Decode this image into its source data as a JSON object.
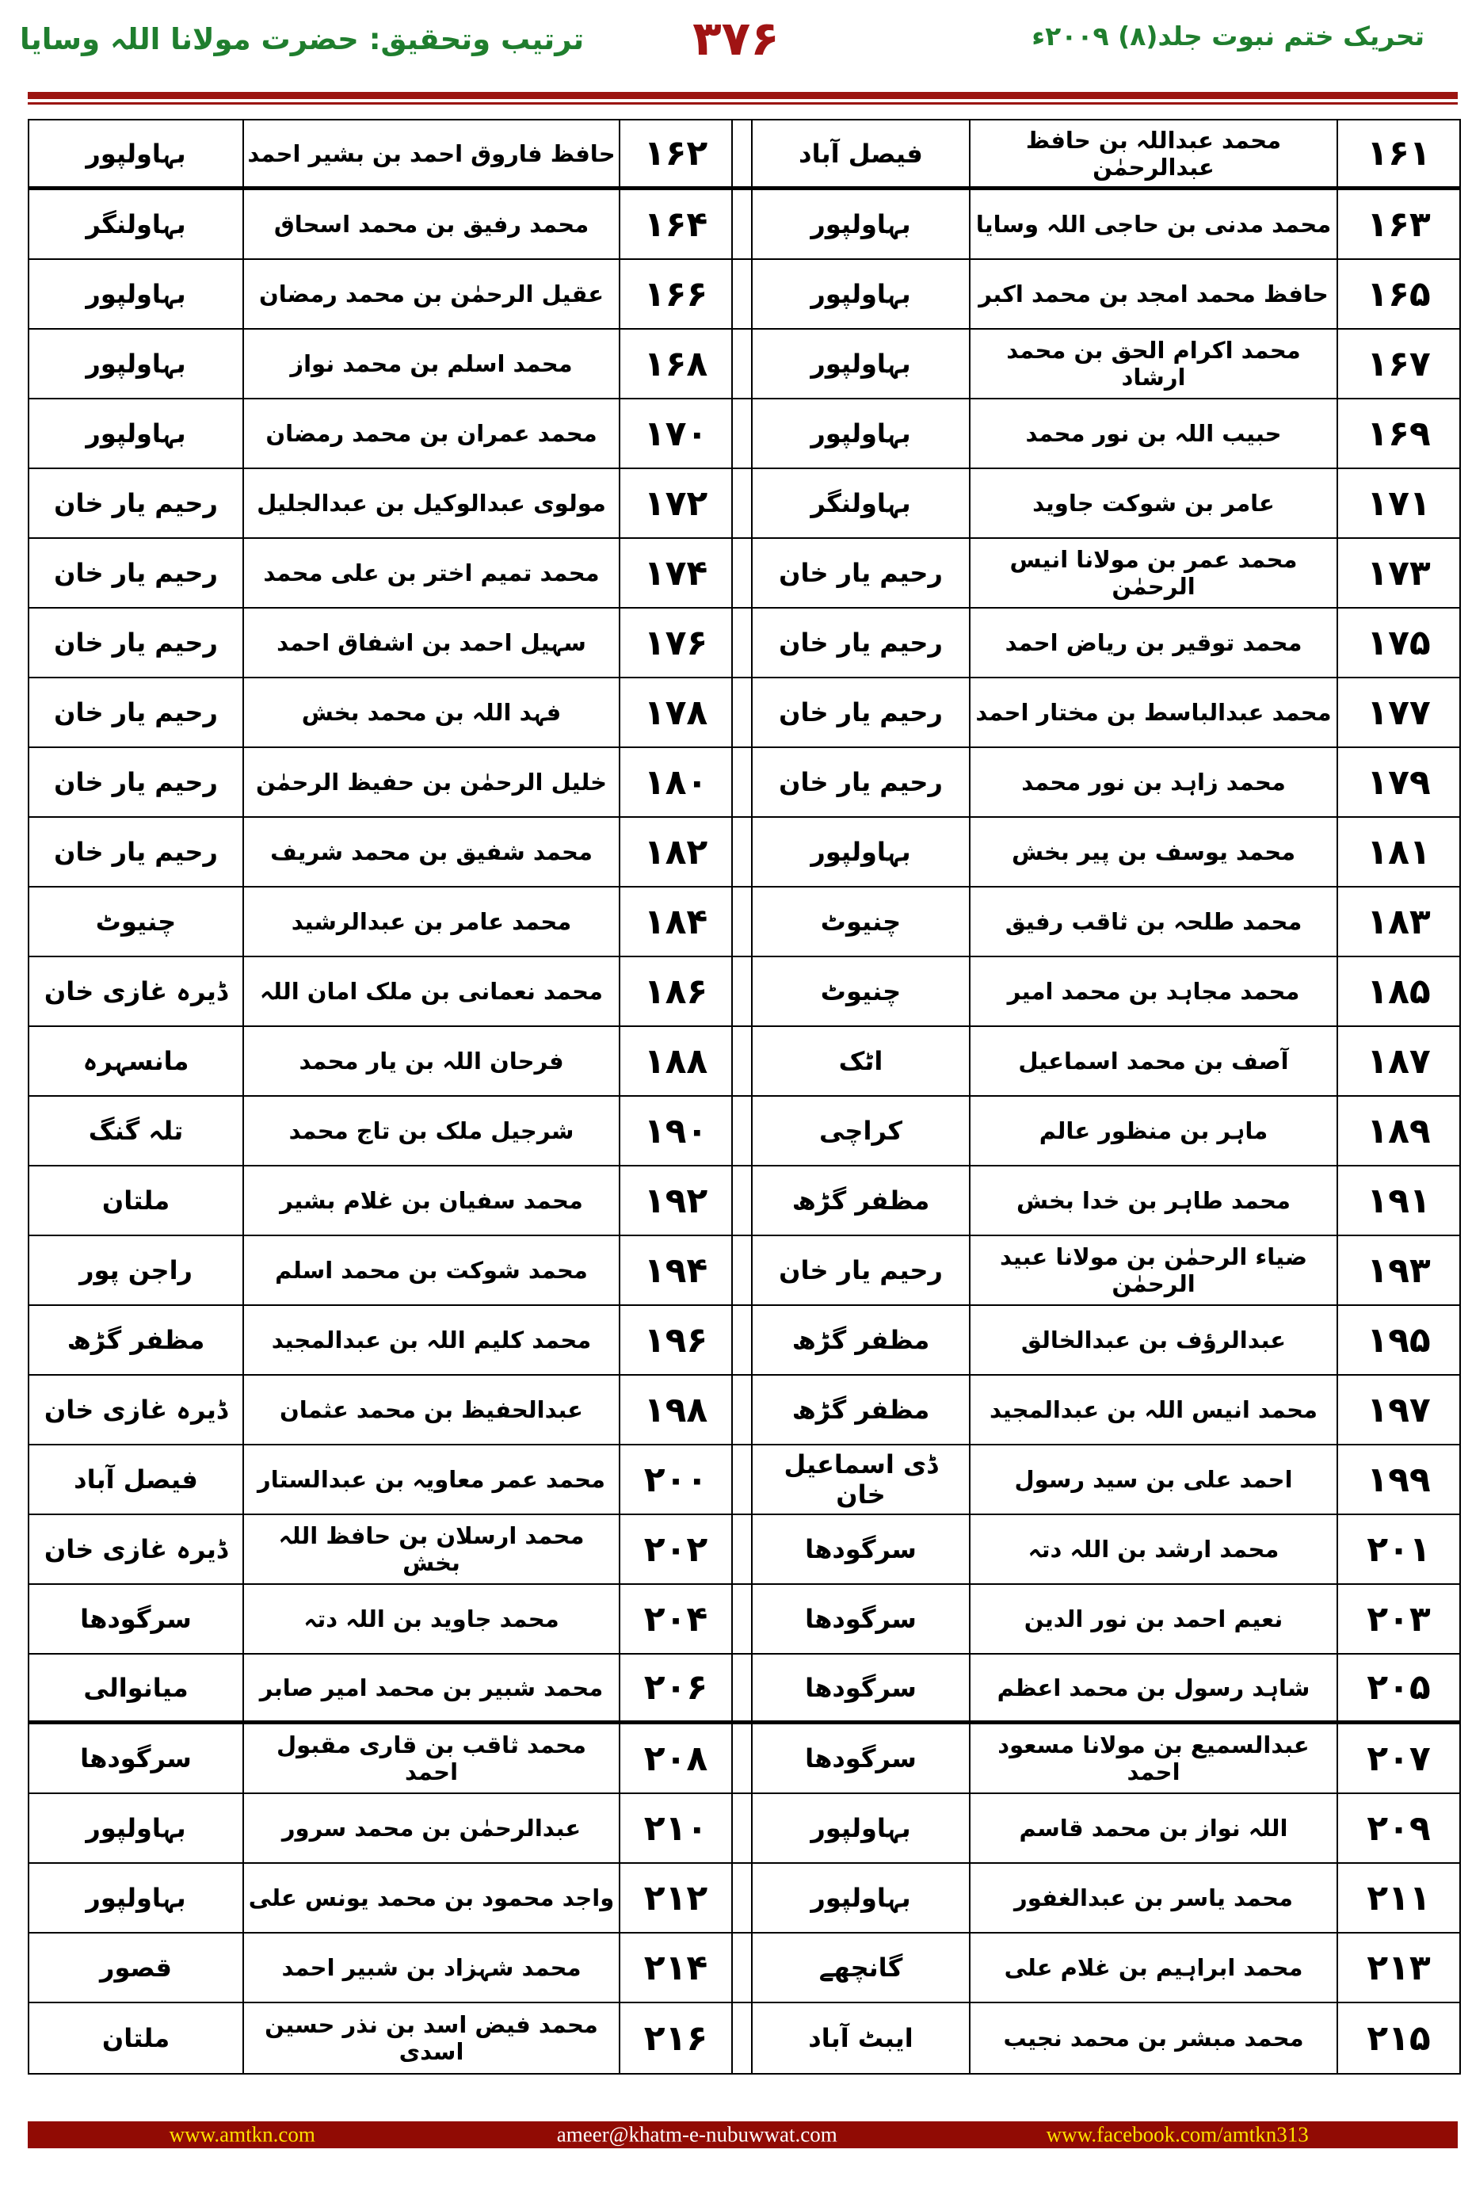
{
  "header": {
    "volume_title": "تحریک ختم نبوت جلد(۸) ۲۰۰۹ء",
    "page_number": "۳۷۶",
    "credit_title": "ترتیب وتحقیق: حضرت مولانا اللہ وسایا"
  },
  "colors": {
    "header_green": "#1f7e2e",
    "rule_red": "#9c1511",
    "page_number_red": "#a01414",
    "footer_bar_maroon": "#910b04",
    "footer_yellow": "#ffe100",
    "footer_white": "#ffffff",
    "text_black": "#000000"
  },
  "table": {
    "rows": [
      {
        "no_r": "۱۶۱",
        "name_r": "محمد عبداللہ بن حافظ عبدالرحمٰن",
        "city_r": "فیصل آباد",
        "no_l": "۱۶۲",
        "name_l": "حافظ فاروق احمد بن بشیر احمد",
        "city_l": "بہاولپور",
        "thick": true
      },
      {
        "no_r": "۱۶۳",
        "name_r": "محمد مدنی بن حاجی اللہ وسایا",
        "city_r": "بہاولپور",
        "no_l": "۱۶۴",
        "name_l": "محمد رفیق بن محمد اسحاق",
        "city_l": "بہاولنگر",
        "thick": false
      },
      {
        "no_r": "۱۶۵",
        "name_r": "حافظ محمد امجد بن محمد اکبر",
        "city_r": "بہاولپور",
        "no_l": "۱۶۶",
        "name_l": "عقیل الرحمٰن بن محمد رمضان",
        "city_l": "بہاولپور",
        "thick": false
      },
      {
        "no_r": "۱۶۷",
        "name_r": "محمد اکرام الحق بن محمد ارشاد",
        "city_r": "بہاولپور",
        "no_l": "۱۶۸",
        "name_l": "محمد اسلم بن محمد نواز",
        "city_l": "بہاولپور",
        "thick": false
      },
      {
        "no_r": "۱۶۹",
        "name_r": "حبیب اللہ بن نور محمد",
        "city_r": "بہاولپور",
        "no_l": "۱۷۰",
        "name_l": "محمد عمران بن محمد رمضان",
        "city_l": "بہاولپور",
        "thick": false
      },
      {
        "no_r": "۱۷۱",
        "name_r": "عامر بن شوکت جاوید",
        "city_r": "بہاولنگر",
        "no_l": "۱۷۲",
        "name_l": "مولوی عبدالوکیل بن عبدالجلیل",
        "city_l": "رحیم یار خان",
        "thick": false
      },
      {
        "no_r": "۱۷۳",
        "name_r": "محمد عمر بن مولانا انیس الرحمٰن",
        "city_r": "رحیم یار خان",
        "no_l": "۱۷۴",
        "name_l": "محمد تمیم اختر بن علی محمد",
        "city_l": "رحیم یار خان",
        "thick": false
      },
      {
        "no_r": "۱۷۵",
        "name_r": "محمد توقیر بن ریاض احمد",
        "city_r": "رحیم یار خان",
        "no_l": "۱۷۶",
        "name_l": "سہیل احمد بن اشفاق احمد",
        "city_l": "رحیم یار خان",
        "thick": false
      },
      {
        "no_r": "۱۷۷",
        "name_r": "محمد عبدالباسط بن مختار احمد",
        "city_r": "رحیم یار خان",
        "no_l": "۱۷۸",
        "name_l": "فہد اللہ بن محمد بخش",
        "city_l": "رحیم یار خان",
        "thick": false
      },
      {
        "no_r": "۱۷۹",
        "name_r": "محمد زاہد بن نور محمد",
        "city_r": "رحیم یار خان",
        "no_l": "۱۸۰",
        "name_l": "خلیل الرحمٰن بن حفیظ الرحمٰن",
        "city_l": "رحیم یار خان",
        "thick": false
      },
      {
        "no_r": "۱۸۱",
        "name_r": "محمد یوسف بن پیر بخش",
        "city_r": "بہاولپور",
        "no_l": "۱۸۲",
        "name_l": "محمد شفیق بن محمد شریف",
        "city_l": "رحیم یار خان",
        "thick": false
      },
      {
        "no_r": "۱۸۳",
        "name_r": "محمد طلحہ بن ثاقب رفیق",
        "city_r": "چنیوٹ",
        "no_l": "۱۸۴",
        "name_l": "محمد عامر بن عبدالرشید",
        "city_l": "چنیوٹ",
        "thick": false
      },
      {
        "no_r": "۱۸۵",
        "name_r": "محمد مجاہد بن محمد امیر",
        "city_r": "چنیوٹ",
        "no_l": "۱۸۶",
        "name_l": "محمد نعمانی بن ملک امان اللہ",
        "city_l": "ڈیرہ غازی خان",
        "thick": false
      },
      {
        "no_r": "۱۸۷",
        "name_r": "آصف بن محمد اسماعیل",
        "city_r": "اٹک",
        "no_l": "۱۸۸",
        "name_l": "فرحان اللہ بن یار محمد",
        "city_l": "مانسہرہ",
        "thick": false
      },
      {
        "no_r": "۱۸۹",
        "name_r": "ماہر بن منظور عالم",
        "city_r": "کراچی",
        "no_l": "۱۹۰",
        "name_l": "شرجیل ملک بن تاج محمد",
        "city_l": "تلہ گنگ",
        "thick": false
      },
      {
        "no_r": "۱۹۱",
        "name_r": "محمد طاہر بن خدا بخش",
        "city_r": "مظفر گڑھ",
        "no_l": "۱۹۲",
        "name_l": "محمد سفیان بن غلام بشیر",
        "city_l": "ملتان",
        "thick": false
      },
      {
        "no_r": "۱۹۳",
        "name_r": "ضیاء الرحمٰن بن مولانا عبید الرحمٰن",
        "city_r": "رحیم یار خان",
        "no_l": "۱۹۴",
        "name_l": "محمد شوکت بن محمد اسلم",
        "city_l": "راجن پور",
        "thick": false
      },
      {
        "no_r": "۱۹۵",
        "name_r": "عبدالرؤف بن عبدالخالق",
        "city_r": "مظفر گڑھ",
        "no_l": "۱۹۶",
        "name_l": "محمد کلیم اللہ بن عبدالمجید",
        "city_l": "مظفر گڑھ",
        "thick": false
      },
      {
        "no_r": "۱۹۷",
        "name_r": "محمد انیس اللہ بن عبدالمجید",
        "city_r": "مظفر گڑھ",
        "no_l": "۱۹۸",
        "name_l": "عبدالحفیظ بن محمد عثمان",
        "city_l": "ڈیرہ غازی خان",
        "thick": false
      },
      {
        "no_r": "۱۹۹",
        "name_r": "احمد علی بن سید رسول",
        "city_r": "ڈی اسماعیل خان",
        "no_l": "۲۰۰",
        "name_l": "محمد عمر معاویہ بن عبدالستار",
        "city_l": "فیصل آباد",
        "thick": false
      },
      {
        "no_r": "۲۰۱",
        "name_r": "محمد ارشد بن اللہ دتہ",
        "city_r": "سرگودھا",
        "no_l": "۲۰۲",
        "name_l": "محمد ارسلان بن حافظ اللہ بخش",
        "city_l": "ڈیرہ غازی خان",
        "thick": false
      },
      {
        "no_r": "۲۰۳",
        "name_r": "نعیم احمد بن نور الدین",
        "city_r": "سرگودھا",
        "no_l": "۲۰۴",
        "name_l": "محمد جاوید بن اللہ دتہ",
        "city_l": "سرگودھا",
        "thick": false
      },
      {
        "no_r": "۲۰۵",
        "name_r": "شاہد رسول بن محمد اعظم",
        "city_r": "سرگودھا",
        "no_l": "۲۰۶",
        "name_l": "محمد شبیر بن محمد امیر صابر",
        "city_l": "میانوالی",
        "thick": true
      },
      {
        "no_r": "۲۰۷",
        "name_r": "عبدالسمیع بن مولانا مسعود احمد",
        "city_r": "سرگودھا",
        "no_l": "۲۰۸",
        "name_l": "محمد ثاقب بن قاری مقبول احمد",
        "city_l": "سرگودھا",
        "thick": false
      },
      {
        "no_r": "۲۰۹",
        "name_r": "اللہ نواز بن محمد قاسم",
        "city_r": "بہاولپور",
        "no_l": "۲۱۰",
        "name_l": "عبدالرحمٰن بن محمد سرور",
        "city_l": "بہاولپور",
        "thick": false
      },
      {
        "no_r": "۲۱۱",
        "name_r": "محمد یاسر بن عبدالغفور",
        "city_r": "بہاولپور",
        "no_l": "۲۱۲",
        "name_l": "واجد محمود بن محمد یونس علی",
        "city_l": "بہاولپور",
        "thick": false
      },
      {
        "no_r": "۲۱۳",
        "name_r": "محمد ابراہیم بن غلام علی",
        "city_r": "گانچھے",
        "no_l": "۲۱۴",
        "name_l": "محمد شہزاد بن شبیر احمد",
        "city_l": "قصور",
        "thick": false
      },
      {
        "no_r": "۲۱۵",
        "name_r": "محمد مبشر بن محمد نجیب",
        "city_r": "ایبٹ آباد",
        "no_l": "۲۱۶",
        "name_l": "محمد فیض اسد بن نذر حسین اسدی",
        "city_l": "ملتان",
        "thick": false
      }
    ]
  },
  "footer": {
    "website": "www.amtkn.com",
    "email": "ameer@khatm-e-nubuwwat.com",
    "facebook": "www.facebook.com/amtkn313"
  }
}
